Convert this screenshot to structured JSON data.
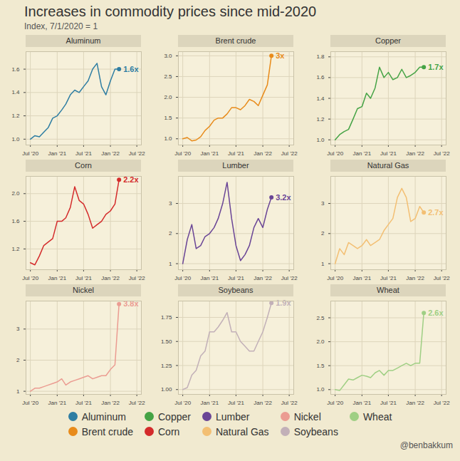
{
  "title": "Increases in commodity prices since mid-2020",
  "subtitle": "Index, 7/1/2020 = 1",
  "caption": "@benbakkum",
  "legend": "bottom",
  "chart_data": [
    {
      "type": "line",
      "title": "Aluminum",
      "x": [
        "2020-07",
        "2020-08",
        "2020-09",
        "2020-10",
        "2020-11",
        "2020-12",
        "2021-01",
        "2021-02",
        "2021-03",
        "2021-04",
        "2021-05",
        "2021-06",
        "2021-07",
        "2021-08",
        "2021-09",
        "2021-10",
        "2021-11",
        "2021-12",
        "2022-01",
        "2022-02",
        "2022-03"
      ],
      "xlim": [
        "2020-06",
        "2022-08"
      ],
      "xticks": [
        {
          "value": "2020-07",
          "label": "Jul '20"
        },
        {
          "value": "2021-01",
          "label": "Jan '21"
        },
        {
          "value": "2021-07",
          "label": "Jul '21"
        },
        {
          "value": "2022-01",
          "label": "Jan '22"
        },
        {
          "value": "2022-07",
          "label": "Jul '22"
        }
      ],
      "ylim": [
        0.95,
        1.75
      ],
      "yticks": [
        {
          "value": 1,
          "label": "1.0"
        },
        1.2,
        1.4,
        1.6
      ],
      "grid": true,
      "series": [
        {
          "name": "Aluminum",
          "color": "#2f7ea3",
          "values": [
            1,
            1.03,
            1.02,
            1.06,
            1.1,
            1.18,
            1.2,
            1.25,
            1.3,
            1.38,
            1.42,
            1.4,
            1.45,
            1.5,
            1.6,
            1.65,
            1.45,
            1.38,
            1.5,
            1.6,
            1.6
          ],
          "value_labels": [
            null,
            null,
            null,
            null,
            null,
            null,
            null,
            null,
            null,
            null,
            null,
            null,
            null,
            null,
            null,
            null,
            null,
            null,
            null,
            null,
            "1.6x"
          ]
        }
      ]
    },
    {
      "type": "line",
      "title": "Brent crude",
      "x": [
        "2020-07",
        "2020-08",
        "2020-09",
        "2020-10",
        "2020-11",
        "2020-12",
        "2021-01",
        "2021-02",
        "2021-03",
        "2021-04",
        "2021-05",
        "2021-06",
        "2021-07",
        "2021-08",
        "2021-09",
        "2021-10",
        "2021-11",
        "2021-12",
        "2022-01",
        "2022-02",
        "2022-03"
      ],
      "xlim": [
        "2020-06",
        "2022-08"
      ],
      "xticks": [
        {
          "value": "2020-07",
          "label": "Jul '20"
        },
        {
          "value": "2021-01",
          "label": "Jan '21"
        },
        {
          "value": "2021-07",
          "label": "Jul '21"
        },
        {
          "value": "2022-01",
          "label": "Jan '22"
        },
        {
          "value": "2022-07",
          "label": "Jul '22"
        }
      ],
      "ylim": [
        0.85,
        3.1
      ],
      "yticks": [
        {
          "value": 1,
          "label": "1.0"
        },
        1.5,
        {
          "value": 2,
          "label": "2.0"
        },
        2.5,
        {
          "value": 3,
          "label": "3.0"
        }
      ],
      "grid": true,
      "series": [
        {
          "name": "Brent crude",
          "color": "#e88b1a",
          "values": [
            1,
            1.03,
            0.95,
            0.97,
            1.05,
            1.2,
            1.3,
            1.45,
            1.5,
            1.5,
            1.6,
            1.75,
            1.75,
            1.7,
            1.8,
            1.95,
            1.9,
            1.8,
            2.05,
            2.3,
            3
          ],
          "value_labels": [
            null,
            null,
            null,
            null,
            null,
            null,
            null,
            null,
            null,
            null,
            null,
            null,
            null,
            null,
            null,
            null,
            null,
            null,
            null,
            null,
            "3x"
          ]
        }
      ]
    },
    {
      "type": "line",
      "title": "Copper",
      "x": [
        "2020-07",
        "2020-08",
        "2020-09",
        "2020-10",
        "2020-11",
        "2020-12",
        "2021-01",
        "2021-02",
        "2021-03",
        "2021-04",
        "2021-05",
        "2021-06",
        "2021-07",
        "2021-08",
        "2021-09",
        "2021-10",
        "2021-11",
        "2021-12",
        "2022-01",
        "2022-02",
        "2022-03"
      ],
      "xlim": [
        "2020-06",
        "2022-08"
      ],
      "xticks": [
        {
          "value": "2020-07",
          "label": "Jul '20"
        },
        {
          "value": "2021-01",
          "label": "Jan '21"
        },
        {
          "value": "2021-07",
          "label": "Jul '21"
        },
        {
          "value": "2022-01",
          "label": "Jan '22"
        },
        {
          "value": "2022-07",
          "label": "Jul '22"
        }
      ],
      "ylim": [
        0.95,
        1.85
      ],
      "yticks": [
        {
          "value": 1,
          "label": "1.0"
        },
        1.2,
        1.4,
        1.6,
        1.8
      ],
      "grid": true,
      "series": [
        {
          "name": "Copper",
          "color": "#45a345",
          "values": [
            1,
            1.05,
            1.08,
            1.1,
            1.2,
            1.3,
            1.32,
            1.45,
            1.4,
            1.5,
            1.7,
            1.6,
            1.65,
            1.58,
            1.6,
            1.68,
            1.6,
            1.62,
            1.65,
            1.7,
            1.7
          ],
          "value_labels": [
            null,
            null,
            null,
            null,
            null,
            null,
            null,
            null,
            null,
            null,
            null,
            null,
            null,
            null,
            null,
            null,
            null,
            null,
            null,
            null,
            "1.7x"
          ]
        }
      ]
    },
    {
      "type": "line",
      "title": "Corn",
      "x": [
        "2020-07",
        "2020-08",
        "2020-09",
        "2020-10",
        "2020-11",
        "2020-12",
        "2021-01",
        "2021-02",
        "2021-03",
        "2021-04",
        "2021-05",
        "2021-06",
        "2021-07",
        "2021-08",
        "2021-09",
        "2021-10",
        "2021-11",
        "2021-12",
        "2022-01",
        "2022-02",
        "2022-03"
      ],
      "xlim": [
        "2020-06",
        "2022-08"
      ],
      "xticks": [
        {
          "value": "2020-07",
          "label": "Jul '20"
        },
        {
          "value": "2021-01",
          "label": "Jan '21"
        },
        {
          "value": "2021-07",
          "label": "Jul '21"
        },
        {
          "value": "2022-01",
          "label": "Jan '22"
        },
        {
          "value": "2022-07",
          "label": "Jul '22"
        }
      ],
      "ylim": [
        0.9,
        2.25
      ],
      "yticks": [
        1.2,
        1.6,
        {
          "value": 2,
          "label": "2.0"
        }
      ],
      "grid": true,
      "series": [
        {
          "name": "Corn",
          "color": "#d42b2b",
          "values": [
            1,
            0.97,
            1.1,
            1.25,
            1.3,
            1.35,
            1.6,
            1.6,
            1.65,
            1.8,
            2.1,
            1.9,
            1.85,
            1.7,
            1.5,
            1.55,
            1.6,
            1.7,
            1.75,
            1.85,
            2.2
          ],
          "value_labels": [
            null,
            null,
            null,
            null,
            null,
            null,
            null,
            null,
            null,
            null,
            null,
            null,
            null,
            null,
            null,
            null,
            null,
            null,
            null,
            null,
            "2.2x"
          ]
        }
      ]
    },
    {
      "type": "line",
      "title": "Lumber",
      "x": [
        "2020-07",
        "2020-08",
        "2020-09",
        "2020-10",
        "2020-11",
        "2020-12",
        "2021-01",
        "2021-02",
        "2021-03",
        "2021-04",
        "2021-05",
        "2021-06",
        "2021-07",
        "2021-08",
        "2021-09",
        "2021-10",
        "2021-11",
        "2021-12",
        "2022-01",
        "2022-02",
        "2022-03"
      ],
      "xlim": [
        "2020-06",
        "2022-08"
      ],
      "xticks": [
        {
          "value": "2020-07",
          "label": "Jul '20"
        },
        {
          "value": "2021-01",
          "label": "Jan '21"
        },
        {
          "value": "2021-07",
          "label": "Jul '21"
        },
        {
          "value": "2022-01",
          "label": "Jan '22"
        },
        {
          "value": "2022-07",
          "label": "Jul '22"
        }
      ],
      "ylim": [
        0.8,
        3.9
      ],
      "yticks": [
        1,
        2,
        3
      ],
      "grid": true,
      "series": [
        {
          "name": "Lumber",
          "color": "#6a4596",
          "values": [
            1,
            1.8,
            2.3,
            1.5,
            1.6,
            1.9,
            2,
            2.2,
            2.5,
            3,
            3.7,
            2.5,
            1.6,
            1.1,
            1.3,
            1.6,
            2.2,
            2.5,
            2.2,
            2.8,
            3.2
          ],
          "value_labels": [
            null,
            null,
            null,
            null,
            null,
            null,
            null,
            null,
            null,
            null,
            null,
            null,
            null,
            null,
            null,
            null,
            null,
            null,
            null,
            null,
            "3.2x"
          ]
        }
      ]
    },
    {
      "type": "line",
      "title": "Natural Gas",
      "x": [
        "2020-07",
        "2020-08",
        "2020-09",
        "2020-10",
        "2020-11",
        "2020-12",
        "2021-01",
        "2021-02",
        "2021-03",
        "2021-04",
        "2021-05",
        "2021-06",
        "2021-07",
        "2021-08",
        "2021-09",
        "2021-10",
        "2021-11",
        "2021-12",
        "2022-01",
        "2022-02",
        "2022-03"
      ],
      "xlim": [
        "2020-06",
        "2022-08"
      ],
      "xticks": [
        {
          "value": "2020-07",
          "label": "Jul '20"
        },
        {
          "value": "2021-01",
          "label": "Jan '21"
        },
        {
          "value": "2021-07",
          "label": "Jul '21"
        },
        {
          "value": "2022-01",
          "label": "Jan '22"
        },
        {
          "value": "2022-07",
          "label": "Jul '22"
        }
      ],
      "ylim": [
        0.8,
        3.9
      ],
      "yticks": [
        1,
        2,
        3
      ],
      "grid": true,
      "series": [
        {
          "name": "Natural Gas",
          "color": "#f3bf73",
          "values": [
            1,
            1.5,
            1.3,
            1.7,
            1.6,
            1.5,
            1.6,
            1.8,
            1.6,
            1.7,
            1.8,
            2.1,
            2.3,
            2.5,
            3.2,
            3.5,
            3.2,
            2.4,
            2.5,
            2.9,
            2.7
          ],
          "value_labels": [
            null,
            null,
            null,
            null,
            null,
            null,
            null,
            null,
            null,
            null,
            null,
            null,
            null,
            null,
            null,
            null,
            null,
            null,
            null,
            null,
            "2.7x"
          ]
        }
      ]
    },
    {
      "type": "line",
      "title": "Nickel",
      "x": [
        "2020-07",
        "2020-08",
        "2020-09",
        "2020-10",
        "2020-11",
        "2020-12",
        "2021-01",
        "2021-02",
        "2021-03",
        "2021-04",
        "2021-05",
        "2021-06",
        "2021-07",
        "2021-08",
        "2021-09",
        "2021-10",
        "2021-11",
        "2021-12",
        "2022-01",
        "2022-02",
        "2022-03"
      ],
      "xlim": [
        "2020-06",
        "2022-08"
      ],
      "xticks": [
        {
          "value": "2020-07",
          "label": "Jul '20"
        },
        {
          "value": "2021-01",
          "label": "Jan '21"
        },
        {
          "value": "2021-07",
          "label": "Jul '21"
        },
        {
          "value": "2022-01",
          "label": "Jan '22"
        },
        {
          "value": "2022-07",
          "label": "Jul '22"
        }
      ],
      "ylim": [
        0.9,
        3.9
      ],
      "yticks": [
        1,
        2,
        3
      ],
      "grid": true,
      "series": [
        {
          "name": "Nickel",
          "color": "#eb9c92",
          "values": [
            1,
            1.1,
            1.1,
            1.15,
            1.2,
            1.25,
            1.3,
            1.4,
            1.2,
            1.3,
            1.35,
            1.4,
            1.45,
            1.5,
            1.4,
            1.45,
            1.5,
            1.5,
            1.7,
            1.85,
            3.8
          ],
          "value_labels": [
            null,
            null,
            null,
            null,
            null,
            null,
            null,
            null,
            null,
            null,
            null,
            null,
            null,
            null,
            null,
            null,
            null,
            null,
            null,
            null,
            "3.8x"
          ]
        }
      ]
    },
    {
      "type": "line",
      "title": "Soybeans",
      "x": [
        "2020-07",
        "2020-08",
        "2020-09",
        "2020-10",
        "2020-11",
        "2020-12",
        "2021-01",
        "2021-02",
        "2021-03",
        "2021-04",
        "2021-05",
        "2021-06",
        "2021-07",
        "2021-08",
        "2021-09",
        "2021-10",
        "2021-11",
        "2021-12",
        "2022-01",
        "2022-02",
        "2022-03"
      ],
      "xlim": [
        "2020-06",
        "2022-08"
      ],
      "xticks": [
        {
          "value": "2020-07",
          "label": "Jul '20"
        },
        {
          "value": "2021-01",
          "label": "Jan '21"
        },
        {
          "value": "2021-07",
          "label": "Jul '21"
        },
        {
          "value": "2022-01",
          "label": "Jan '22"
        },
        {
          "value": "2022-07",
          "label": "Jul '22"
        }
      ],
      "ylim": [
        0.95,
        1.92
      ],
      "yticks": [
        {
          "value": 1,
          "label": "1.00"
        },
        1.25,
        {
          "value": 1.5,
          "label": "1.50"
        },
        1.75
      ],
      "grid": true,
      "series": [
        {
          "name": "Soybeans",
          "color": "#c2b0b8",
          "values": [
            1,
            1.02,
            1.15,
            1.2,
            1.35,
            1.4,
            1.6,
            1.6,
            1.65,
            1.72,
            1.8,
            1.6,
            1.6,
            1.5,
            1.45,
            1.4,
            1.4,
            1.5,
            1.6,
            1.75,
            1.9
          ],
          "value_labels": [
            null,
            null,
            null,
            null,
            null,
            null,
            null,
            null,
            null,
            null,
            null,
            null,
            null,
            null,
            null,
            null,
            null,
            null,
            null,
            null,
            "1.9x"
          ]
        }
      ]
    },
    {
      "type": "line",
      "title": "Wheat",
      "x": [
        "2020-07",
        "2020-08",
        "2020-09",
        "2020-10",
        "2020-11",
        "2020-12",
        "2021-01",
        "2021-02",
        "2021-03",
        "2021-04",
        "2021-05",
        "2021-06",
        "2021-07",
        "2021-08",
        "2021-09",
        "2021-10",
        "2021-11",
        "2021-12",
        "2022-01",
        "2022-02",
        "2022-03"
      ],
      "xlim": [
        "2020-06",
        "2022-08"
      ],
      "xticks": [
        {
          "value": "2020-07",
          "label": "Jul '20"
        },
        {
          "value": "2021-01",
          "label": "Jan '21"
        },
        {
          "value": "2021-07",
          "label": "Jul '21"
        },
        {
          "value": "2022-01",
          "label": "Jan '22"
        },
        {
          "value": "2022-07",
          "label": "Jul '22"
        }
      ],
      "ylim": [
        0.9,
        2.85
      ],
      "yticks": [
        {
          "value": 1,
          "label": "1.0"
        },
        1.5,
        {
          "value": 2,
          "label": "2.0"
        },
        2.5
      ],
      "grid": true,
      "series": [
        {
          "name": "Wheat",
          "color": "#9fcf84",
          "values": [
            1,
            0.98,
            1.1,
            1.22,
            1.2,
            1.25,
            1.3,
            1.28,
            1.25,
            1.35,
            1.4,
            1.3,
            1.4,
            1.4,
            1.45,
            1.5,
            1.55,
            1.5,
            1.55,
            1.55,
            2.6
          ],
          "value_labels": [
            null,
            null,
            null,
            null,
            null,
            null,
            null,
            null,
            null,
            null,
            null,
            null,
            null,
            null,
            null,
            null,
            null,
            null,
            null,
            null,
            "2.6x"
          ]
        }
      ]
    }
  ]
}
